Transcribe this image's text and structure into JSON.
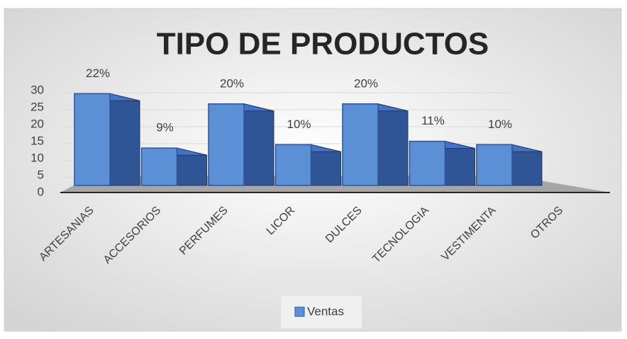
{
  "chart_data": {
    "type": "bar3d",
    "title": "TIPO DE PRODUCTOS",
    "categories": [
      "ARTESANIAS",
      "ACCESORIOS",
      "PERFUMES",
      "LICOR",
      "DULCES",
      "TECNOLOGIA",
      "VESTIMENTA",
      "OTROS"
    ],
    "series": [
      {
        "name": "Ventas",
        "color": "#5b8fd6",
        "values": [
          27,
          11,
          24,
          12,
          24,
          13,
          12,
          null
        ],
        "value_labels": [
          "22%",
          "9%",
          "20%",
          "10%",
          "20%",
          "11%",
          "10%",
          null
        ]
      }
    ],
    "ylim": [
      0,
      30
    ],
    "yticks": [
      0,
      5,
      10,
      15,
      20,
      25,
      30
    ],
    "grid": true,
    "legend": "bottom"
  }
}
